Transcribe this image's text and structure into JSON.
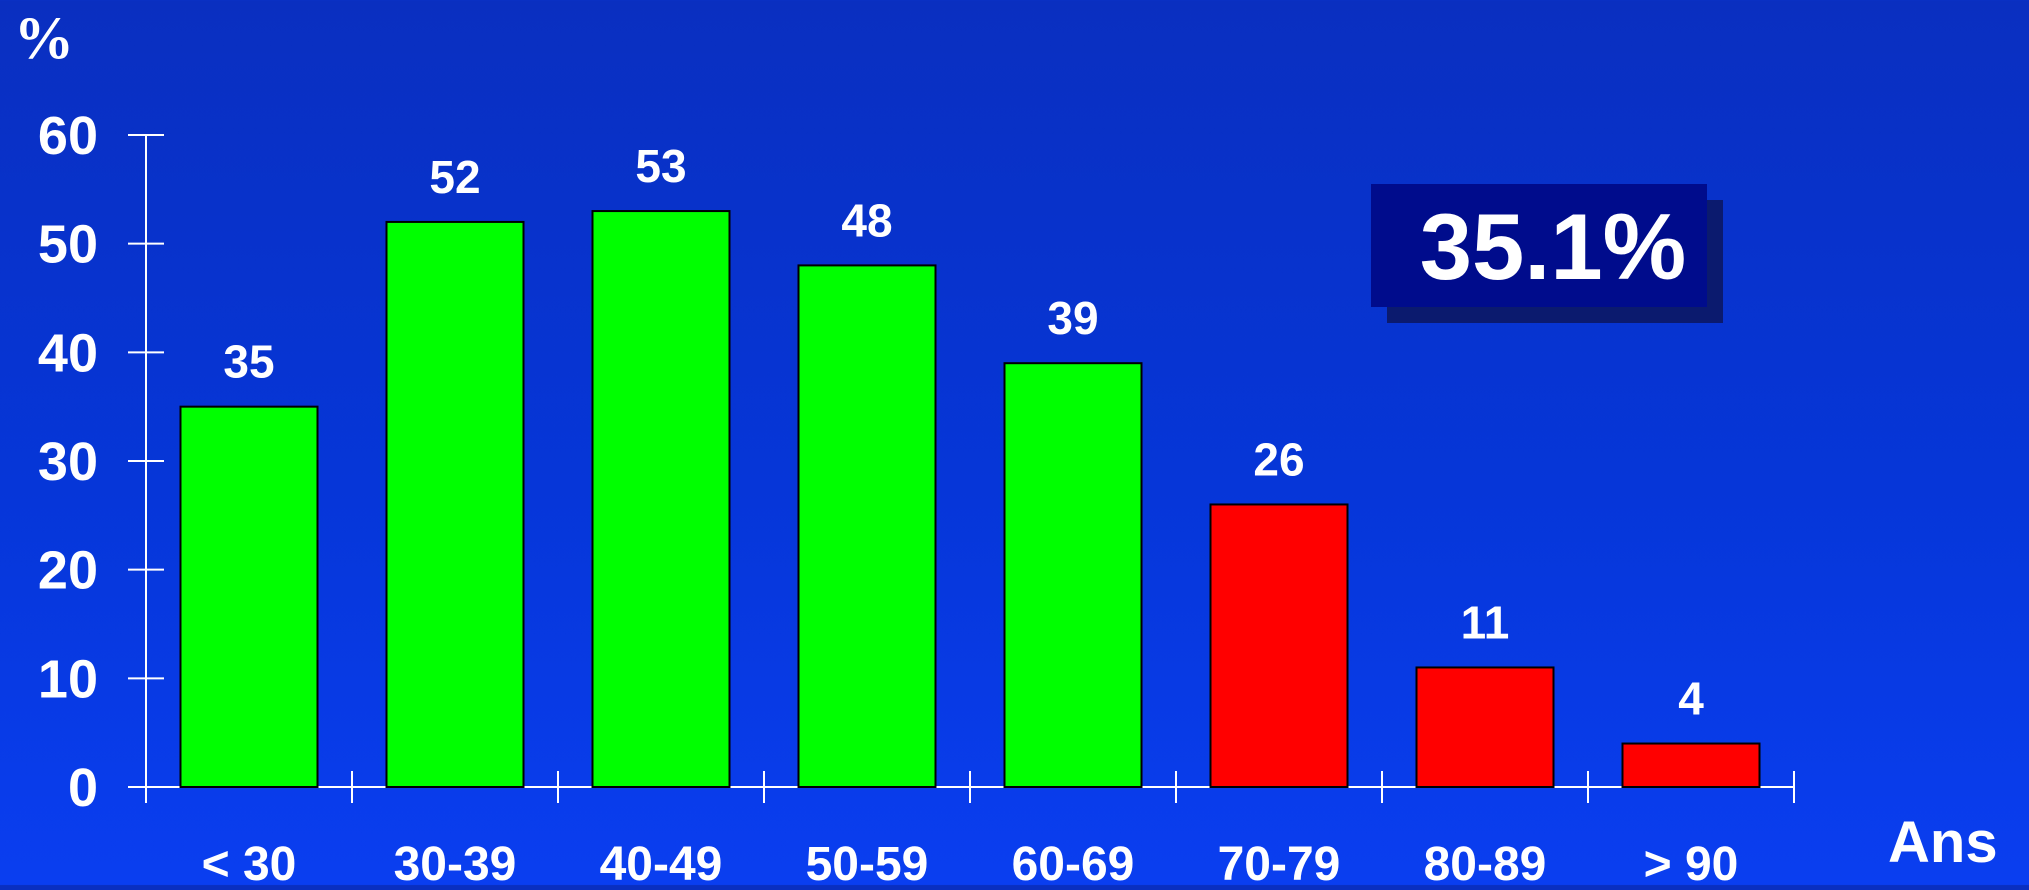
{
  "chart_data": {
    "type": "bar",
    "categories": [
      "< 30",
      "30-39",
      "40-49",
      "50-59",
      "60-69",
      "70-79",
      "80-89",
      "> 90"
    ],
    "values": [
      35,
      52,
      53,
      48,
      39,
      26,
      11,
      4
    ],
    "bar_colors": [
      "#00ff00",
      "#00ff00",
      "#00ff00",
      "#00ff00",
      "#00ff00",
      "#ff0000",
      "#ff0000",
      "#ff0000"
    ],
    "ylabel": "%",
    "xlabel": "Ans",
    "ylim": [
      0,
      60
    ],
    "yticks": [
      0,
      10,
      20,
      30,
      40,
      50,
      60
    ],
    "grid": false,
    "data_labels": true
  },
  "callout": {
    "text": "35.1%",
    "background": "#000c8c",
    "shadow": "#0b1a6e"
  },
  "colors": {
    "background": "#0636d8",
    "axis": "#ffffff",
    "text": "#ffffff"
  }
}
